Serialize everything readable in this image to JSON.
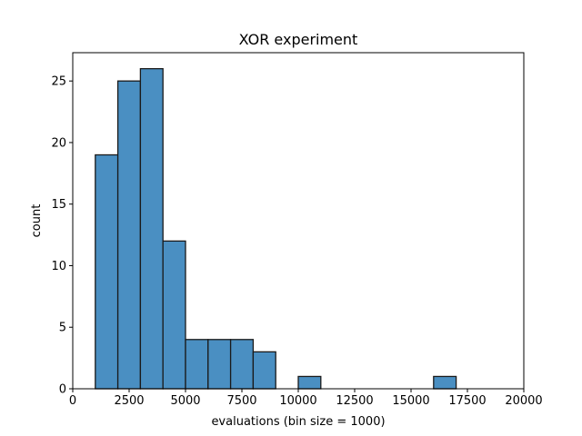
{
  "chart_data": {
    "type": "bar",
    "title": "XOR experiment",
    "xlabel": "evaluations (bin size = 1000)",
    "ylabel": "count",
    "xlim": [
      0,
      20000
    ],
    "ylim": [
      0,
      27.3
    ],
    "xticks": [
      0,
      2500,
      5000,
      7500,
      10000,
      12500,
      15000,
      17500,
      20000
    ],
    "yticks": [
      0,
      5,
      10,
      15,
      20,
      25
    ],
    "bin_size": 1000,
    "bins": [
      {
        "start": 0,
        "count": 0
      },
      {
        "start": 1000,
        "count": 19
      },
      {
        "start": 2000,
        "count": 25
      },
      {
        "start": 3000,
        "count": 26
      },
      {
        "start": 4000,
        "count": 12
      },
      {
        "start": 5000,
        "count": 4
      },
      {
        "start": 6000,
        "count": 4
      },
      {
        "start": 7000,
        "count": 4
      },
      {
        "start": 8000,
        "count": 3
      },
      {
        "start": 9000,
        "count": 0
      },
      {
        "start": 10000,
        "count": 1
      },
      {
        "start": 11000,
        "count": 0
      },
      {
        "start": 12000,
        "count": 0
      },
      {
        "start": 13000,
        "count": 0
      },
      {
        "start": 14000,
        "count": 0
      },
      {
        "start": 15000,
        "count": 0
      },
      {
        "start": 16000,
        "count": 1
      },
      {
        "start": 17000,
        "count": 0
      },
      {
        "start": 18000,
        "count": 0
      }
    ],
    "bar_color": "#4a8fc2",
    "edge_color": "#1a1a1a",
    "grid": false,
    "legend": "none"
  }
}
